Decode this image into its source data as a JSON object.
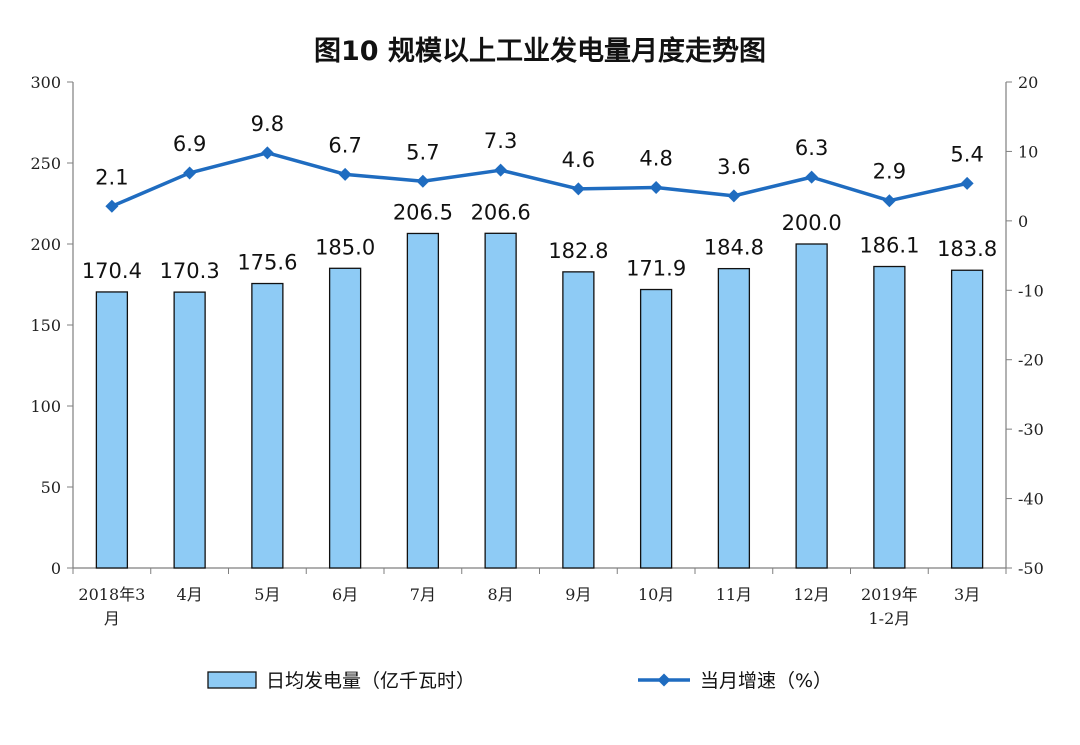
{
  "chart_data": {
    "type": "bar",
    "title": "图10 规模以上工业发电量月度走势图",
    "categories": [
      [
        "2018年3",
        "月"
      ],
      [
        "4月"
      ],
      [
        "5月"
      ],
      [
        "6月"
      ],
      [
        "7月"
      ],
      [
        "8月"
      ],
      [
        "9月"
      ],
      [
        "10月"
      ],
      [
        "11月"
      ],
      [
        "12月"
      ],
      [
        "2019年",
        "1-2月"
      ],
      [
        "3月"
      ]
    ],
    "series": [
      {
        "name": "日均发电量（亿千瓦时）",
        "type": "bar",
        "axis": "left",
        "color": "#8ecbf5",
        "values": [
          170.4,
          170.3,
          175.6,
          185.0,
          206.5,
          206.6,
          182.8,
          171.9,
          184.8,
          200.0,
          186.1,
          183.8
        ],
        "labels": [
          "170.4",
          "170.3",
          "175.6",
          "185.0",
          "206.5",
          "206.6",
          "182.8",
          "171.9",
          "184.8",
          "200.0",
          "186.1",
          "183.8"
        ]
      },
      {
        "name": "当月增速（%）",
        "type": "line",
        "axis": "right",
        "color": "#1f6cc0",
        "values": [
          2.1,
          6.9,
          9.8,
          6.7,
          5.7,
          7.3,
          4.6,
          4.8,
          3.6,
          6.3,
          2.9,
          5.4
        ],
        "labels": [
          "2.1",
          "6.9",
          "9.8",
          "6.7",
          "5.7",
          "7.3",
          "4.6",
          "4.8",
          "3.6",
          "6.3",
          "2.9",
          "5.4"
        ]
      }
    ],
    "y_left": {
      "range": [
        0,
        300
      ],
      "ticks": [
        0,
        50,
        100,
        150,
        200,
        250,
        300
      ]
    },
    "y_right": {
      "range": [
        -50,
        20
      ],
      "ticks": [
        -50,
        -40,
        -30,
        -20,
        -10,
        0,
        10,
        20
      ]
    },
    "grid": false,
    "legend_position": "bottom"
  }
}
